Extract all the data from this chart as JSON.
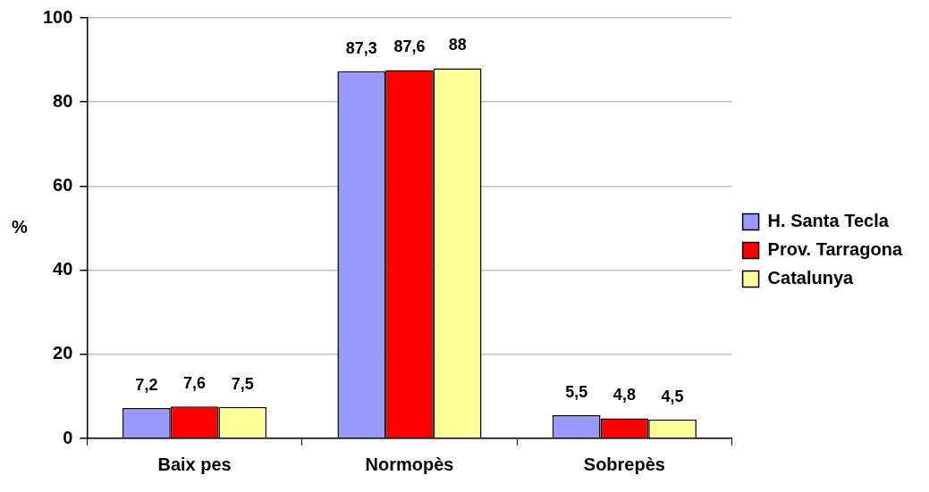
{
  "chart_data": {
    "type": "bar",
    "ylabel": "%",
    "categories": [
      "Baix pes",
      "Normopès",
      "Sobrepès"
    ],
    "series": [
      {
        "name": "H. Santa Tecla",
        "color": "#9999ff",
        "values": [
          7.2,
          87.3,
          5.5
        ],
        "value_labels": [
          "7,2",
          "87,3",
          "5,5"
        ]
      },
      {
        "name": "Prov. Tarragona",
        "color": "#ff0000",
        "values": [
          7.6,
          87.6,
          4.8
        ],
        "value_labels": [
          "7,6",
          "87,6",
          "4,8"
        ]
      },
      {
        "name": "Catalunya",
        "color": "#ffff99",
        "values": [
          7.5,
          88,
          4.5
        ],
        "value_labels": [
          "7,5",
          "88",
          "4,5"
        ]
      }
    ],
    "ylim": [
      0,
      100
    ],
    "yticks": [
      0,
      20,
      40,
      60,
      80,
      100
    ],
    "grid": "y",
    "legend": "right"
  }
}
